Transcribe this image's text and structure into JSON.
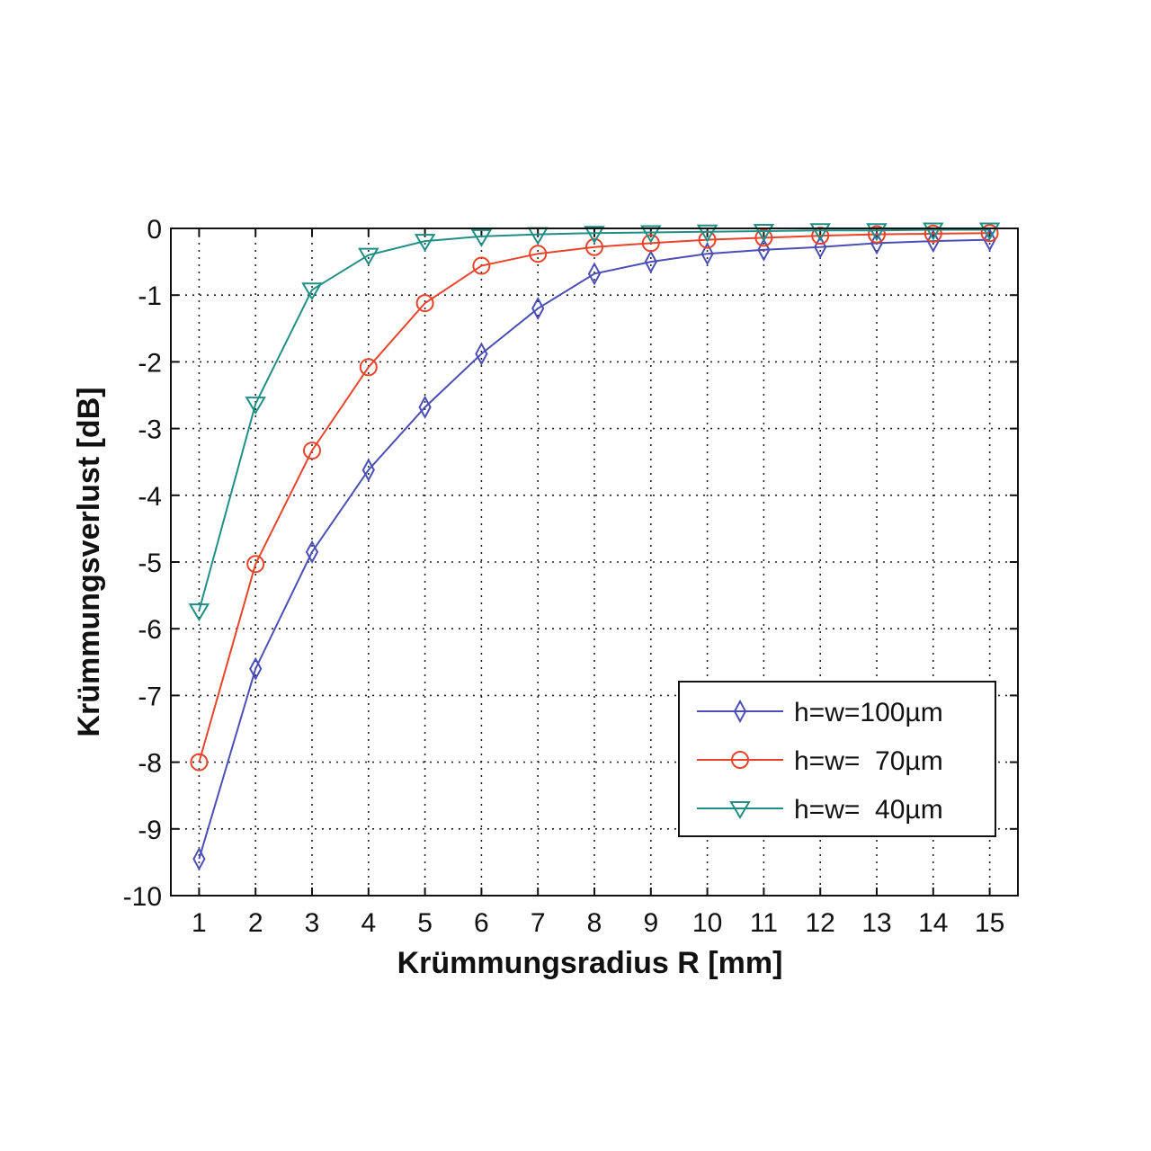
{
  "chart_data": {
    "type": "line",
    "xlabel": "Krümmungsradius R [mm]",
    "ylabel": "Krümmungsverlust [dB]",
    "xlim": [
      0.5,
      15.5
    ],
    "ylim": [
      -10,
      0
    ],
    "x_ticks": [
      "1",
      "2",
      "3",
      "4",
      "5",
      "6",
      "7",
      "8",
      "9",
      "10",
      "11",
      "12",
      "13",
      "14",
      "15"
    ],
    "y_ticks": [
      "0",
      "-1",
      "-2",
      "-3",
      "-4",
      "-5",
      "-6",
      "-7",
      "-8",
      "-9",
      "-10"
    ],
    "grid": true,
    "legend_position": "lower-right",
    "x": [
      1,
      2,
      3,
      4,
      5,
      6,
      7,
      8,
      9,
      10,
      11,
      12,
      13,
      14,
      15
    ],
    "series": [
      {
        "name": "h=w=100µm",
        "color": "#4b4fb5",
        "marker": "diamond",
        "values": [
          -9.45,
          -6.6,
          -4.85,
          -3.62,
          -2.68,
          -1.88,
          -1.2,
          -0.68,
          -0.5,
          -0.38,
          -0.32,
          -0.28,
          -0.22,
          -0.19,
          -0.17
        ]
      },
      {
        "name": "h=w=  70µm",
        "color": "#e8432b",
        "marker": "circle",
        "values": [
          -8.0,
          -5.03,
          -3.33,
          -2.08,
          -1.12,
          -0.56,
          -0.38,
          -0.28,
          -0.22,
          -0.17,
          -0.14,
          -0.11,
          -0.09,
          -0.08,
          -0.07
        ]
      },
      {
        "name": "h=w=  40µm",
        "color": "#1f8f86",
        "marker": "triangle-down",
        "values": [
          -5.73,
          -2.63,
          -0.92,
          -0.4,
          -0.19,
          -0.12,
          -0.09,
          -0.07,
          -0.06,
          -0.05,
          -0.04,
          -0.03,
          -0.03,
          -0.02,
          -0.02
        ]
      }
    ]
  }
}
